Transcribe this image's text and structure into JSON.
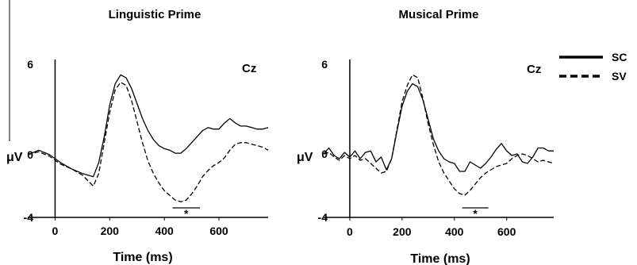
{
  "colors": {
    "ink": "#000000",
    "background": "#ffffff"
  },
  "legend": {
    "items": [
      {
        "label": "SC",
        "style": "solid"
      },
      {
        "label": "SV",
        "style": "dashed"
      }
    ]
  },
  "chart_data": [
    {
      "type": "line",
      "title": "Linguistic Prime",
      "electrode": "Cz",
      "xlabel": "Time (ms)",
      "ylabel": "μV",
      "xlim": [
        -100,
        780
      ],
      "ylim": [
        -4,
        6
      ],
      "x_ticks": [
        "0",
        "200",
        "400",
        "600"
      ],
      "y_ticks": [
        "6",
        "0",
        "-4"
      ],
      "significance_window": {
        "x": [
          430,
          530
        ],
        "label": "*"
      },
      "series": [
        {
          "name": "SC",
          "style": "solid",
          "x": [
            -100,
            -60,
            -20,
            20,
            60,
            100,
            140,
            160,
            180,
            200,
            220,
            240,
            260,
            280,
            300,
            320,
            340,
            360,
            380,
            400,
            420,
            440,
            460,
            480,
            500,
            520,
            540,
            560,
            580,
            600,
            620,
            640,
            660,
            680,
            700,
            720,
            740,
            760,
            780
          ],
          "y": [
            0,
            0.3,
            0,
            -0.5,
            -0.9,
            -1.2,
            -1.4,
            -0.5,
            1.2,
            3.3,
            4.7,
            5.3,
            5.1,
            4.4,
            3.4,
            2.4,
            1.6,
            1.0,
            0.6,
            0.4,
            0.3,
            0.1,
            0.1,
            0.4,
            0.8,
            1.2,
            1.6,
            1.8,
            1.7,
            1.7,
            2.1,
            2.4,
            2.1,
            1.9,
            1.9,
            1.8,
            1.7,
            1.7,
            1.8
          ]
        },
        {
          "name": "SV",
          "style": "dashed",
          "x": [
            -100,
            -60,
            -20,
            20,
            60,
            100,
            140,
            160,
            180,
            200,
            220,
            240,
            260,
            280,
            300,
            320,
            340,
            360,
            380,
            400,
            420,
            440,
            460,
            480,
            500,
            520,
            540,
            560,
            580,
            600,
            620,
            640,
            660,
            680,
            700,
            720,
            740,
            760,
            780
          ],
          "y": [
            0,
            0.2,
            -0.1,
            -0.6,
            -0.9,
            -1.3,
            -2.0,
            -1.2,
            0.8,
            2.8,
            4.3,
            4.8,
            4.6,
            3.6,
            2.2,
            0.8,
            -0.4,
            -1.2,
            -1.8,
            -2.3,
            -2.6,
            -2.9,
            -3.0,
            -2.9,
            -2.5,
            -2.0,
            -1.4,
            -1.0,
            -0.7,
            -0.5,
            -0.2,
            0.3,
            0.7,
            0.8,
            0.8,
            0.7,
            0.6,
            0.5,
            0.3
          ]
        }
      ]
    },
    {
      "type": "line",
      "title": "Musical Prime",
      "electrode": "Cz",
      "xlabel": "Time (ms)",
      "ylabel": "μV",
      "xlim": [
        -100,
        780
      ],
      "ylim": [
        -4,
        6
      ],
      "x_ticks": [
        "0",
        "200",
        "400",
        "600"
      ],
      "y_ticks": [
        "6",
        "0",
        "-4"
      ],
      "significance_window": {
        "x": [
          430,
          530
        ],
        "label": "*"
      },
      "series": [
        {
          "name": "SC",
          "style": "solid",
          "x": [
            -100,
            -80,
            -60,
            -40,
            -20,
            0,
            20,
            40,
            60,
            80,
            100,
            120,
            140,
            160,
            180,
            200,
            220,
            240,
            260,
            280,
            300,
            320,
            340,
            360,
            380,
            400,
            420,
            440,
            460,
            480,
            500,
            520,
            540,
            560,
            580,
            600,
            620,
            640,
            660,
            680,
            700,
            720,
            740,
            760,
            780
          ],
          "y": [
            0,
            0.4,
            -0.1,
            -0.3,
            0.1,
            -0.2,
            0.2,
            -0.3,
            0.1,
            0.2,
            -0.5,
            -0.2,
            -1.0,
            -0.3,
            1.5,
            3.2,
            4.2,
            4.7,
            4.5,
            3.6,
            2.3,
            1.0,
            0.2,
            -0.3,
            -0.5,
            -0.6,
            -1.1,
            -1.1,
            -0.5,
            -0.7,
            -0.9,
            -0.6,
            -0.2,
            0.3,
            0.7,
            0.2,
            -0.1,
            0.0,
            -0.5,
            -0.6,
            -0.2,
            0.4,
            0.4,
            0.2,
            0.2
          ]
        },
        {
          "name": "SV",
          "style": "dashed",
          "x": [
            -100,
            -80,
            -60,
            -40,
            -20,
            0,
            20,
            40,
            60,
            80,
            100,
            120,
            140,
            160,
            180,
            200,
            220,
            240,
            260,
            280,
            300,
            320,
            340,
            360,
            380,
            400,
            420,
            440,
            460,
            480,
            500,
            520,
            540,
            560,
            580,
            600,
            620,
            640,
            660,
            680,
            700,
            720,
            740,
            760,
            780
          ],
          "y": [
            0,
            0.1,
            -0.2,
            -0.4,
            -0.1,
            -0.3,
            -0.1,
            -0.4,
            -0.3,
            -0.6,
            -0.9,
            -1.2,
            -1.1,
            -0.3,
            1.6,
            3.5,
            4.6,
            5.3,
            5.1,
            3.7,
            2.0,
            0.6,
            -0.5,
            -1.2,
            -1.7,
            -2.2,
            -2.5,
            -2.6,
            -2.3,
            -1.9,
            -1.5,
            -1.2,
            -1.0,
            -0.8,
            -0.7,
            -0.6,
            -0.3,
            -0.1,
            0.0,
            -0.1,
            -0.3,
            -0.5,
            -0.4,
            -0.5,
            -0.6
          ]
        }
      ]
    }
  ]
}
